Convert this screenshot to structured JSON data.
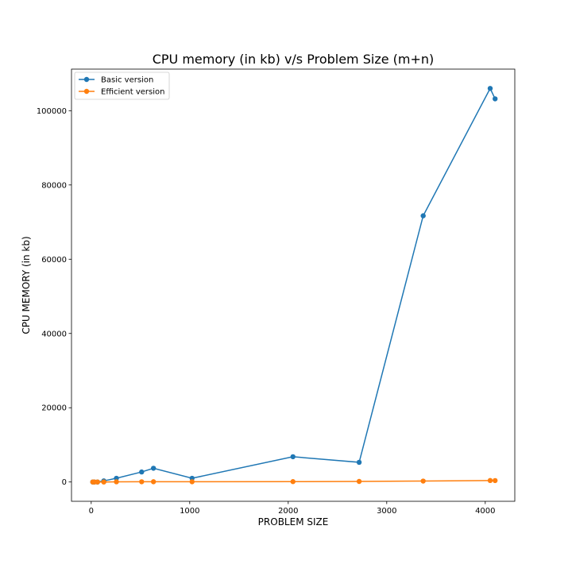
{
  "chart_data": {
    "type": "line",
    "title": "CPU memory (in kb) v/s Problem Size (m+n)",
    "xlabel": "PROBLEM SIZE",
    "ylabel": "CPU MEMORY (in kb)",
    "xlim": [
      -200,
      4300
    ],
    "ylim": [
      -5200,
      111200
    ],
    "xticks": [
      0,
      1000,
      2000,
      3000,
      4000
    ],
    "yticks": [
      0,
      20000,
      40000,
      60000,
      80000,
      100000
    ],
    "grid": false,
    "legend_position": "upper-left",
    "series": [
      {
        "name": "Basic version",
        "color": "#1f77b4",
        "x": [
          16,
          32,
          64,
          128,
          256,
          512,
          632,
          1024,
          2048,
          2720,
          3370,
          4050,
          4100
        ],
        "y": [
          0,
          0,
          0,
          300,
          1000,
          2700,
          3700,
          1000,
          6800,
          5300,
          71700,
          106000,
          103200
        ]
      },
      {
        "name": "Efficient version",
        "color": "#ff7f0e",
        "x": [
          16,
          32,
          64,
          128,
          256,
          512,
          632,
          1024,
          2048,
          2720,
          3370,
          4050,
          4100
        ],
        "y": [
          0,
          0,
          0,
          0,
          50,
          60,
          70,
          60,
          100,
          150,
          250,
          400,
          380
        ]
      }
    ]
  }
}
